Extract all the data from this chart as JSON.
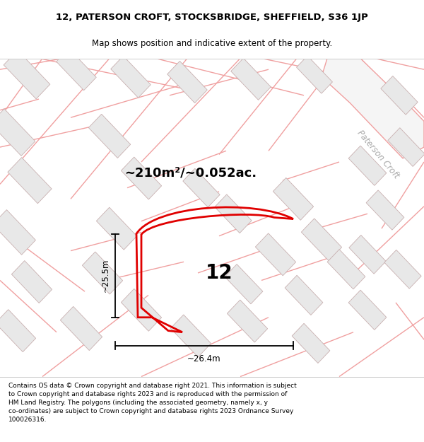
{
  "title_line1": "12, PATERSON CROFT, STOCKSBRIDGE, SHEFFIELD, S36 1JP",
  "title_line2": "Map shows position and indicative extent of the property.",
  "footer_text": "Contains OS data © Crown copyright and database right 2021. This information is subject\nto Crown copyright and database rights 2023 and is reproduced with the permission of\nHM Land Registry. The polygons (including the associated geometry, namely x, y\nco-ordinates) are subject to Crown copyright and database rights 2023 Ordnance Survey\n100026316.",
  "area_label": "~210m²/~0.052ac.",
  "number_label": "12",
  "dim_height": "~25.5m",
  "dim_width": "~26.4m",
  "street_label": "Paterson Croft",
  "bg_color": "#ffffff",
  "map_bg": "#ffffff",
  "plot_color": "#e00000",
  "road_line_color": "#f0a0a0",
  "road_line_lw": 1.0,
  "building_fill": "#e8e8e8",
  "building_edge": "#c8b0b0",
  "building_edge_lw": 0.6,
  "dim_color": "#000000",
  "label_color": "#000000",
  "street_color": "#aaaaaa",
  "title_fontsize": 9.5,
  "subtitle_fontsize": 8.5,
  "footer_fontsize": 6.5,
  "area_fontsize": 13,
  "number_fontsize": 20,
  "dim_fontsize": 8.5,
  "street_fontsize": 8.5,
  "map_xlim": [
    0,
    600
  ],
  "map_ylim": [
    0,
    430
  ]
}
